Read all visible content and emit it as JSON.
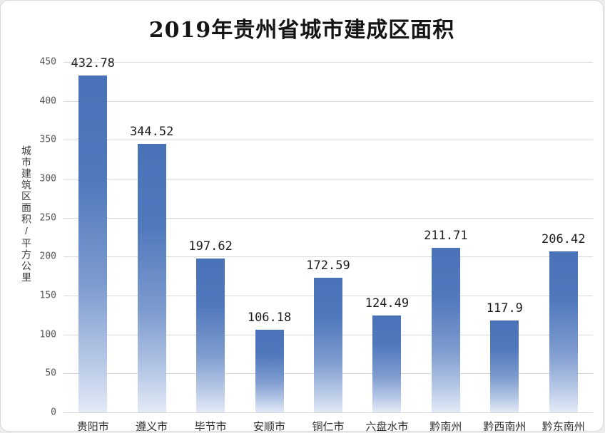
{
  "chart_data": {
    "type": "bar",
    "title": "2019年贵州省城市建成区面积",
    "ylabel": "城市建筑区面积/平方公里",
    "xlabel": "",
    "categories": [
      "贵阳市",
      "遵义市",
      "毕节市",
      "安顺市",
      "铜仁市",
      "六盘水市",
      "黔南州",
      "黔西南州",
      "黔东南州"
    ],
    "values": [
      432.78,
      344.52,
      197.62,
      106.18,
      172.59,
      124.49,
      211.71,
      117.9,
      206.42
    ],
    "value_labels": [
      "432.78",
      "344.52",
      "197.62",
      "106.18",
      "172.59",
      "124.49",
      "211.71",
      "117.9",
      "206.42"
    ],
    "ylim": [
      0,
      450
    ],
    "yticks": [
      0,
      50,
      100,
      150,
      200,
      250,
      300,
      350,
      400,
      450
    ],
    "grid": true,
    "legend": "none",
    "colors": {
      "bar_top": "#4a72b8",
      "bar_bottom": "#e3eaf6",
      "gridline": "#d9d9d9",
      "title_text": "#141414",
      "tick_text": "#555555",
      "background": "#ffffff"
    }
  }
}
